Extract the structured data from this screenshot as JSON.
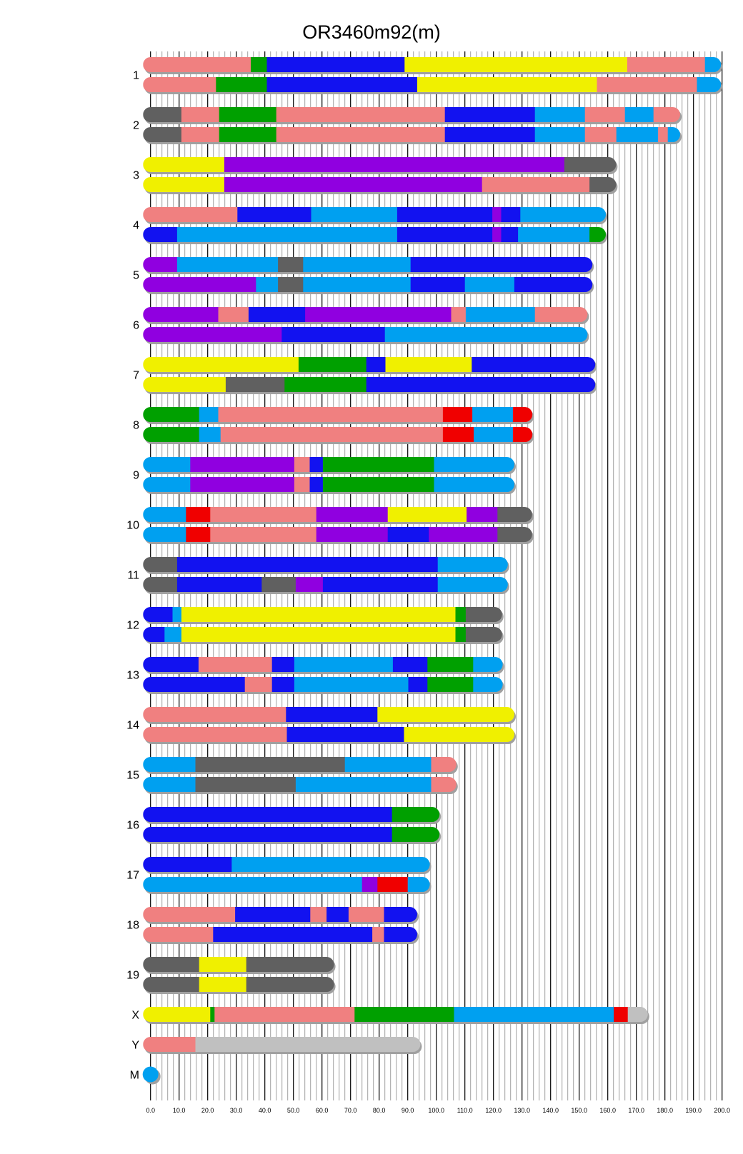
{
  "chart_data": {
    "type": "chromosome-painting",
    "title": "OR3460m92(m)",
    "xlabel": "",
    "ylabel": "",
    "xlim": [
      0,
      200
    ],
    "x_major_step": 10,
    "x_minor_step": 2,
    "grid": true,
    "tick_labels": [
      "0.0",
      "10.0",
      "20.0",
      "30.0",
      "40.0",
      "50.0",
      "60.0",
      "70.0",
      "80.0",
      "90.0",
      "100.0",
      "110.0",
      "120.0",
      "130.0",
      "140.0",
      "150.0",
      "160.0",
      "170.0",
      "180.0",
      "190.0",
      "200.0"
    ],
    "colors": {
      "S": "#f08080",
      "G": "#00a000",
      "B": "#1212f0",
      "Y": "#f0f000",
      "L": "#00a0f0",
      "D": "#606060",
      "P": "#9000e0",
      "R": "#f00000",
      "A": "#c0c0c0"
    },
    "segment_format": "each haplotype is a list of [end_Mb, colorKey] starting at 0",
    "chromosomes": [
      {
        "label": "1",
        "length": 197,
        "haplotypes": [
          [
            [
              35.1,
              "S"
            ],
            [
              40.7,
              "G"
            ],
            [
              88.9,
              "B"
            ],
            [
              166.8,
              "Y"
            ],
            [
              194,
              "S"
            ],
            [
              197,
              "L"
            ]
          ],
          [
            [
              22.9,
              "S"
            ],
            [
              40.7,
              "G"
            ],
            [
              93.3,
              "B"
            ],
            [
              156.2,
              "Y"
            ],
            [
              191.2,
              "S"
            ],
            [
              197,
              "L"
            ]
          ]
        ]
      },
      {
        "label": "2",
        "length": 182.7,
        "haplotypes": [
          [
            [
              10.8,
              "D"
            ],
            [
              24,
              "S"
            ],
            [
              44,
              "G"
            ],
            [
              103,
              "S"
            ],
            [
              134.5,
              "B"
            ],
            [
              152,
              "L"
            ],
            [
              166,
              "S"
            ],
            [
              176,
              "L"
            ],
            [
              182.7,
              "S"
            ]
          ],
          [
            [
              10.8,
              "D"
            ],
            [
              24,
              "S"
            ],
            [
              44,
              "G"
            ],
            [
              103,
              "S"
            ],
            [
              134.5,
              "B"
            ],
            [
              152,
              "L"
            ],
            [
              163,
              "S"
            ],
            [
              177.6,
              "L"
            ],
            [
              181,
              "S"
            ],
            [
              182.7,
              "L"
            ]
          ]
        ]
      },
      {
        "label": "3",
        "length": 160.3,
        "haplotypes": [
          [
            [
              25.8,
              "Y"
            ],
            [
              144.8,
              "P"
            ],
            [
              160.3,
              "D"
            ]
          ],
          [
            [
              25.8,
              "Y"
            ],
            [
              116,
              "P"
            ],
            [
              153.6,
              "S"
            ],
            [
              160.3,
              "D"
            ]
          ]
        ]
      },
      {
        "label": "4",
        "length": 156.7,
        "haplotypes": [
          [
            [
              30.4,
              "S"
            ],
            [
              56.2,
              "B"
            ],
            [
              86.3,
              "L"
            ],
            [
              119.6,
              "B"
            ],
            [
              122.7,
              "P"
            ],
            [
              129.4,
              "B"
            ],
            [
              156.7,
              "L"
            ]
          ],
          [
            [
              9.3,
              "B"
            ],
            [
              86.3,
              "L"
            ],
            [
              119.6,
              "B"
            ],
            [
              122.7,
              "P"
            ],
            [
              128.6,
              "B"
            ],
            [
              153.6,
              "L"
            ],
            [
              156.7,
              "G"
            ]
          ]
        ]
      },
      {
        "label": "5",
        "length": 152,
        "haplotypes": [
          [
            [
              9.3,
              "P"
            ],
            [
              44.6,
              "L"
            ],
            [
              53.4,
              "D"
            ],
            [
              91,
              "L"
            ],
            [
              152,
              "B"
            ]
          ],
          [
            [
              36.9,
              "P"
            ],
            [
              44.6,
              "L"
            ],
            [
              53.4,
              "D"
            ],
            [
              91,
              "L"
            ],
            [
              110,
              "B"
            ],
            [
              127.3,
              "L"
            ],
            [
              152,
              "B"
            ]
          ]
        ]
      },
      {
        "label": "6",
        "length": 150.3,
        "haplotypes": [
          [
            [
              23.7,
              "P"
            ],
            [
              34.3,
              "S"
            ],
            [
              54.1,
              "B"
            ],
            [
              105.2,
              "P"
            ],
            [
              110.3,
              "S"
            ],
            [
              134.5,
              "L"
            ],
            [
              150.3,
              "S"
            ]
          ],
          [
            [
              45.9,
              "P"
            ],
            [
              82,
              "B"
            ],
            [
              150.3,
              "L"
            ]
          ]
        ]
      },
      {
        "label": "7",
        "length": 153,
        "haplotypes": [
          [
            [
              51.8,
              "Y"
            ],
            [
              75.5,
              "G"
            ],
            [
              82.2,
              "B"
            ],
            [
              112.4,
              "Y"
            ],
            [
              153,
              "B"
            ]
          ],
          [
            [
              26.3,
              "Y"
            ],
            [
              46.9,
              "D"
            ],
            [
              75.5,
              "G"
            ],
            [
              153,
              "B"
            ]
          ]
        ]
      },
      {
        "label": "8",
        "length": 131,
        "haplotypes": [
          [
            [
              17,
              "G"
            ],
            [
              23.7,
              "L"
            ],
            [
              102.3,
              "S"
            ],
            [
              112.6,
              "R"
            ],
            [
              126.8,
              "L"
            ],
            [
              131,
              "R"
            ]
          ],
          [
            [
              17,
              "G"
            ],
            [
              24.5,
              "L"
            ],
            [
              102.3,
              "S"
            ],
            [
              113.1,
              "R"
            ],
            [
              126.8,
              "L"
            ],
            [
              131,
              "R"
            ]
          ]
        ]
      },
      {
        "label": "9",
        "length": 124.7,
        "haplotypes": [
          [
            [
              13.9,
              "L"
            ],
            [
              50.3,
              "P"
            ],
            [
              55.7,
              "S"
            ],
            [
              60.3,
              "B"
            ],
            [
              99.2,
              "G"
            ],
            [
              124.7,
              "L"
            ]
          ],
          [
            [
              13.9,
              "L"
            ],
            [
              50.3,
              "P"
            ],
            [
              55.7,
              "S"
            ],
            [
              60.3,
              "B"
            ],
            [
              99.2,
              "G"
            ],
            [
              124.7,
              "L"
            ]
          ]
        ]
      },
      {
        "label": "10",
        "length": 130.9,
        "haplotypes": [
          [
            [
              12.4,
              "L"
            ],
            [
              20.9,
              "R"
            ],
            [
              58,
              "S"
            ],
            [
              83,
              "P"
            ],
            [
              110.6,
              "Y"
            ],
            [
              121.4,
              "P"
            ],
            [
              130.9,
              "D"
            ]
          ],
          [
            [
              12.4,
              "L"
            ],
            [
              20.9,
              "R"
            ],
            [
              58,
              "S"
            ],
            [
              83,
              "P"
            ],
            [
              97.4,
              "B"
            ],
            [
              121.4,
              "P"
            ],
            [
              130.9,
              "D"
            ]
          ]
        ]
      },
      {
        "label": "11",
        "length": 122.4,
        "haplotypes": [
          [
            [
              9.3,
              "D"
            ],
            [
              100.5,
              "B"
            ],
            [
              122.4,
              "L"
            ]
          ],
          [
            [
              9.3,
              "D"
            ],
            [
              38.9,
              "B"
            ],
            [
              50.8,
              "D"
            ],
            [
              60.3,
              "P"
            ],
            [
              100.5,
              "B"
            ],
            [
              122.4,
              "L"
            ]
          ]
        ]
      },
      {
        "label": "12",
        "length": 120.4,
        "haplotypes": [
          [
            [
              7.7,
              "B"
            ],
            [
              10.8,
              "L"
            ],
            [
              106.7,
              "Y"
            ],
            [
              110.3,
              "G"
            ],
            [
              120.4,
              "D"
            ]
          ],
          [
            [
              4.9,
              "B"
            ],
            [
              10.8,
              "L"
            ],
            [
              106.7,
              "Y"
            ],
            [
              110.3,
              "G"
            ],
            [
              120.4,
              "D"
            ]
          ]
        ]
      },
      {
        "label": "13",
        "length": 120.6,
        "haplotypes": [
          [
            [
              16.8,
              "B"
            ],
            [
              42.5,
              "S"
            ],
            [
              50.3,
              "B"
            ],
            [
              84.8,
              "L"
            ],
            [
              96.9,
              "B"
            ],
            [
              112.9,
              "G"
            ],
            [
              120.6,
              "L"
            ]
          ],
          [
            [
              33,
              "B"
            ],
            [
              42.5,
              "S"
            ],
            [
              50.3,
              "B"
            ],
            [
              90.2,
              "L"
            ],
            [
              96.9,
              "B"
            ],
            [
              112.9,
              "G"
            ],
            [
              120.6,
              "L"
            ]
          ]
        ]
      },
      {
        "label": "14",
        "length": 124.7,
        "haplotypes": [
          [
            [
              47.4,
              "S"
            ],
            [
              79.4,
              "B"
            ],
            [
              124.7,
              "Y"
            ]
          ],
          [
            [
              47.7,
              "S"
            ],
            [
              88.7,
              "B"
            ],
            [
              124.7,
              "Y"
            ]
          ]
        ]
      },
      {
        "label": "15",
        "length": 104.4,
        "haplotypes": [
          [
            [
              15.7,
              "L"
            ],
            [
              68,
              "D"
            ],
            [
              98.2,
              "L"
            ],
            [
              104.4,
              "S"
            ]
          ],
          [
            [
              15.7,
              "L"
            ],
            [
              50.8,
              "D"
            ],
            [
              98.2,
              "L"
            ],
            [
              104.4,
              "S"
            ]
          ]
        ]
      },
      {
        "label": "16",
        "length": 98.5,
        "haplotypes": [
          [
            [
              84.5,
              "B"
            ],
            [
              98.5,
              "G"
            ]
          ],
          [
            [
              84.5,
              "B"
            ],
            [
              98.5,
              "G"
            ]
          ]
        ]
      },
      {
        "label": "17",
        "length": 95.1,
        "haplotypes": [
          [
            [
              28.4,
              "B"
            ],
            [
              95.1,
              "L"
            ]
          ],
          [
            [
              74,
              "L"
            ],
            [
              79.4,
              "P"
            ],
            [
              90,
              "R"
            ],
            [
              95.1,
              "L"
            ]
          ]
        ]
      },
      {
        "label": "18",
        "length": 90.7,
        "haplotypes": [
          [
            [
              29.6,
              "S"
            ],
            [
              55.9,
              "B"
            ],
            [
              61.6,
              "S"
            ],
            [
              69.3,
              "B"
            ],
            [
              81.7,
              "S"
            ],
            [
              90.7,
              "B"
            ]
          ],
          [
            [
              21.9,
              "S"
            ],
            [
              77.6,
              "B"
            ],
            [
              81.7,
              "S"
            ],
            [
              90.7,
              "B"
            ]
          ]
        ]
      },
      {
        "label": "19",
        "length": 61.6,
        "haplotypes": [
          [
            [
              17,
              "D"
            ],
            [
              33.5,
              "Y"
            ],
            [
              61.6,
              "D"
            ]
          ],
          [
            [
              17,
              "D"
            ],
            [
              33.5,
              "Y"
            ],
            [
              61.6,
              "D"
            ]
          ]
        ]
      },
      {
        "label": "X",
        "length": 171.4,
        "haplotypes": [
          [
            [
              20.9,
              "Y"
            ],
            [
              22.4,
              "G"
            ],
            [
              71.4,
              "S"
            ],
            [
              106.2,
              "G"
            ],
            [
              162.1,
              "L"
            ],
            [
              167,
              "R"
            ],
            [
              171.4,
              "A"
            ]
          ]
        ]
      },
      {
        "label": "Y",
        "length": 91.8,
        "haplotypes": [
          [
            [
              15.7,
              "S"
            ],
            [
              91.8,
              "A"
            ]
          ]
        ]
      },
      {
        "label": "M",
        "length": 0.016,
        "haplotypes": [
          [
            [
              0.016,
              "L"
            ]
          ]
        ]
      }
    ]
  }
}
